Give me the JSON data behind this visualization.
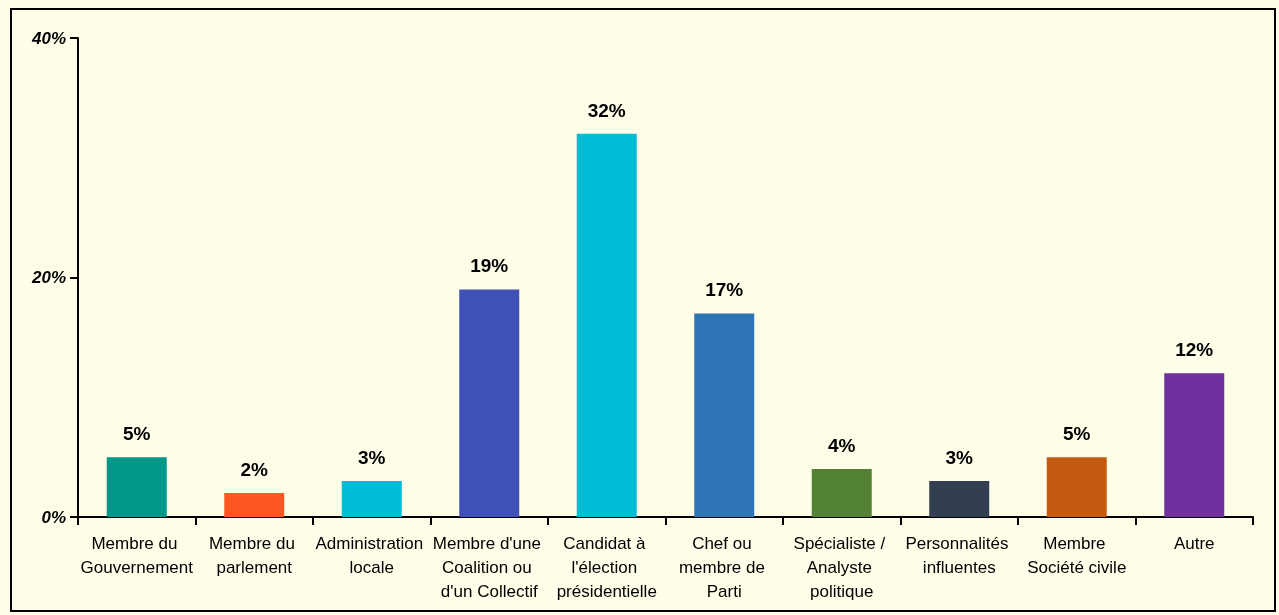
{
  "chart_data": {
    "type": "bar",
    "categories": [
      "Membre du Gouvernement",
      "Membre du parlement",
      "Administration locale",
      "Membre d'une Coalition ou d'un Collectif",
      "Candidat à l'élection présidentielle",
      "Chef ou membre de Parti",
      "Spécialiste / Analyste politique",
      "Personnalités influentes",
      "Membre Société civile",
      "Autre"
    ],
    "values": [
      5,
      2,
      3,
      19,
      32,
      17,
      4,
      3,
      5,
      12
    ],
    "value_labels": [
      "5%",
      "2%",
      "3%",
      "19%",
      "32%",
      "17%",
      "4%",
      "3%",
      "5%",
      "12%"
    ],
    "colors": [
      "#009688",
      "#ff5722",
      "#00bcd4",
      "#3f51b5",
      "#00bcd4",
      "#2e75b6",
      "#548235",
      "#333f50",
      "#c55a11",
      "#7030a0"
    ],
    "ylim": [
      0,
      40
    ],
    "yticks": [
      {
        "value": 0,
        "label": "0%"
      },
      {
        "value": 20,
        "label": "20%"
      },
      {
        "value": 40,
        "label": "40%"
      }
    ],
    "grid": false
  }
}
